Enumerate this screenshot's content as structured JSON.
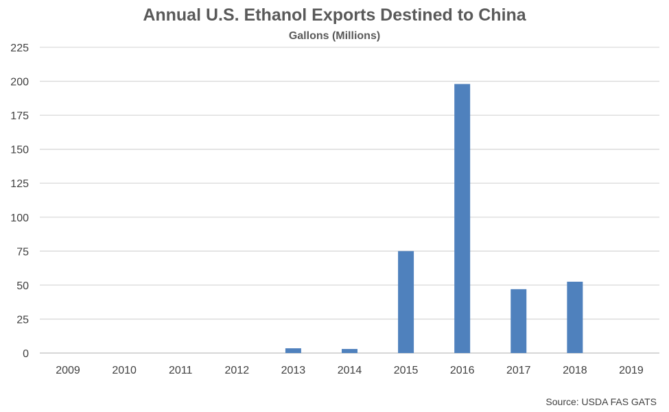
{
  "chart_data": {
    "type": "bar",
    "title": "Annual U.S. Ethanol Exports Destined to China",
    "subtitle": "Gallons (Millions)",
    "source": "Source: USDA FAS GATS",
    "categories": [
      "2009",
      "2010",
      "2011",
      "2012",
      "2013",
      "2014",
      "2015",
      "2016",
      "2017",
      "2018",
      "2019"
    ],
    "values": [
      0,
      0,
      0,
      0,
      3.5,
      3,
      75,
      198,
      47,
      52.5,
      0
    ],
    "ylim": [
      0,
      225
    ],
    "yticks": [
      "0",
      "25",
      "50",
      "75",
      "100",
      "125",
      "150",
      "175",
      "200",
      "225"
    ],
    "xlabel": "",
    "ylabel": "",
    "grid": true,
    "legend": "none",
    "colors": {
      "bar": "#4F81BD",
      "grid": "#D9D9D9",
      "text": "#595959"
    }
  }
}
